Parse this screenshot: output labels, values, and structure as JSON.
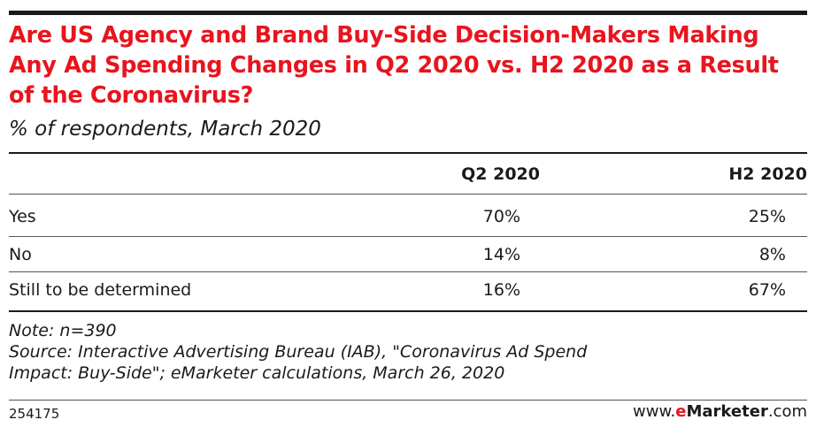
{
  "title": "Are US Agency and Brand Buy-Side Decision-Makers Making Any Ad Spending Changes in Q2 2020 vs. H2 2020 as a Result of the Coronavirus?",
  "subtitle": "% of respondents, March 2020",
  "chart_data": {
    "type": "table",
    "columns": [
      "",
      "Q2 2020",
      "H2 2020"
    ],
    "rows": [
      {
        "label": "Yes",
        "values": [
          "70%",
          "25%"
        ]
      },
      {
        "label": "No",
        "values": [
          "14%",
          "8%"
        ]
      },
      {
        "label": "Still to be determined",
        "values": [
          "16%",
          "67%"
        ]
      }
    ]
  },
  "note": {
    "line1": "Note: n=390",
    "line2": "Source: Interactive Advertising Bureau (IAB), \"Coronavirus Ad Spend",
    "line3": "Impact: Buy-Side\"; eMarketer calculations, March 26, 2020"
  },
  "footer": {
    "chart_id": "254175",
    "brand_prefix": "www.",
    "brand_e": "e",
    "brand_name": "Marketer",
    "brand_suffix": ".com"
  },
  "colors": {
    "title": "#e8141e",
    "text": "#1a1a1a"
  }
}
